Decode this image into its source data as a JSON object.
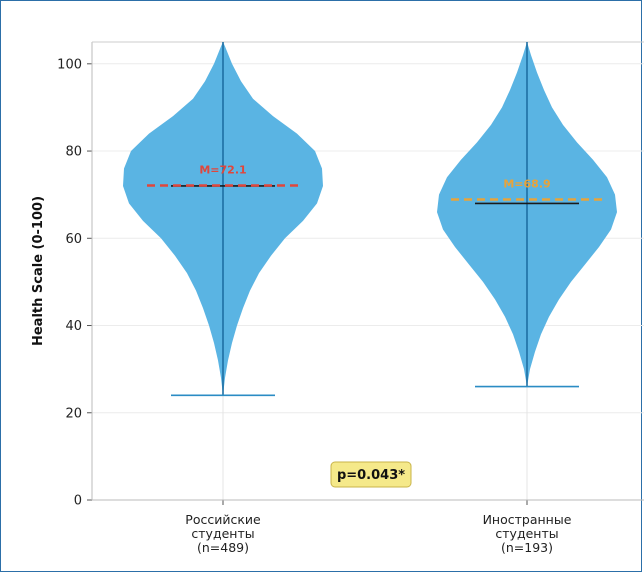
{
  "chart_data": {
    "type": "violin",
    "ylabel": "Health Scale (0-100)",
    "ylim": [
      0,
      105
    ],
    "yticks": [
      0,
      20,
      40,
      60,
      80,
      100
    ],
    "grid": true,
    "categories": [
      {
        "lines": [
          "Российские",
          "студенты",
          "(n=489)"
        ],
        "min": 24,
        "max": 105,
        "median": 72,
        "mean": 72.1,
        "mean_label": "M=72.1",
        "mean_color": "#e0463c",
        "violin_color": "#5ab4e3"
      },
      {
        "lines": [
          "Иностранные",
          "студенты",
          "(n=193)"
        ],
        "min": 26,
        "max": 105,
        "median": 68,
        "mean": 68.9,
        "mean_label": "M=68.9",
        "mean_color": "#e8a33a",
        "violin_color": "#5ab4e3"
      }
    ],
    "annotation": {
      "text": "p=0.043*",
      "background": "#f5e98a"
    }
  }
}
